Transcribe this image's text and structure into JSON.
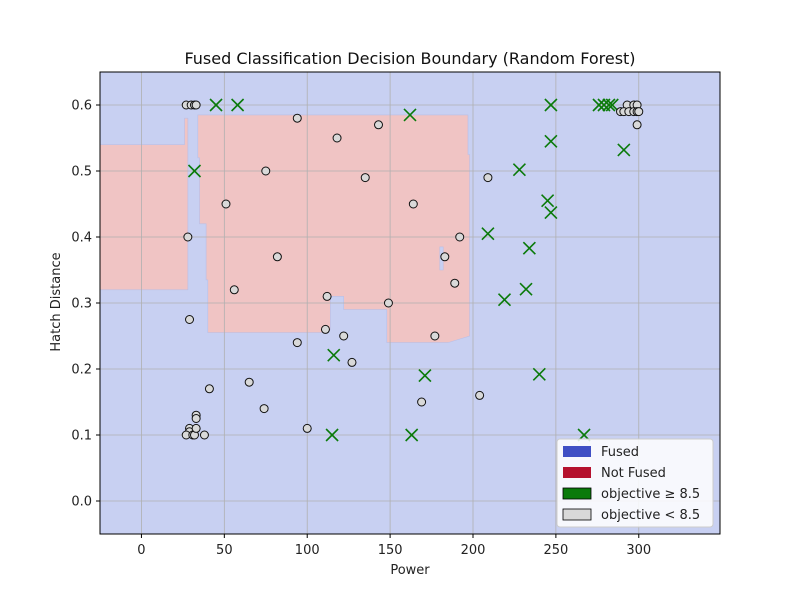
{
  "chart_data": {
    "type": "scatter",
    "title": "Fused Classification Decision Boundary (Random Forest)",
    "xlabel": "Power",
    "ylabel": "Hatch Distance",
    "xlim": [
      -25,
      349
    ],
    "ylim": [
      -0.05,
      0.65
    ],
    "xticks": [
      0,
      50,
      100,
      150,
      200,
      250,
      300
    ],
    "yticks": [
      0.0,
      0.1,
      0.2,
      0.3,
      0.4,
      0.5,
      0.6
    ],
    "grid": true,
    "legend_position": "lower-right",
    "colors": {
      "fused_region": "#c8d0f2",
      "not_fused_region": "#f0c4c4",
      "fused_patch": "#3f4fc4",
      "not_fused_patch": "#b5112e",
      "high_marker": "#0a7a0a",
      "low_marker_fill": "#d9d9d9",
      "low_marker_edge": "#111111"
    },
    "legend": [
      {
        "label": "Fused",
        "kind": "patch",
        "color": "#3f4fc4"
      },
      {
        "label": "Not Fused",
        "kind": "patch",
        "color": "#b5112e"
      },
      {
        "label": "objective ≥ 8.5",
        "kind": "patch",
        "color": "#0a7a0a"
      },
      {
        "label": "objective < 8.5",
        "kind": "patch",
        "color": "#d9d9d9"
      }
    ],
    "regions": [
      {
        "class": "Not Fused",
        "polygon": [
          [
            -25,
            0.54
          ],
          [
            26,
            0.54
          ],
          [
            26,
            0.58
          ],
          [
            28,
            0.58
          ],
          [
            28,
            0.32
          ],
          [
            26,
            0.32
          ],
          [
            26,
            0.32
          ],
          [
            -25,
            0.32
          ]
        ]
      },
      {
        "class": "Not Fused",
        "polygon": [
          [
            34,
            0.585
          ],
          [
            197,
            0.585
          ],
          [
            197,
            0.525
          ],
          [
            198,
            0.525
          ],
          [
            198,
            0.25
          ],
          [
            185,
            0.24
          ],
          [
            155,
            0.24
          ],
          [
            155,
            0.24
          ],
          [
            148,
            0.24
          ],
          [
            148,
            0.29
          ],
          [
            122,
            0.29
          ],
          [
            122,
            0.31
          ],
          [
            114,
            0.31
          ],
          [
            114,
            0.26
          ],
          [
            112,
            0.255
          ],
          [
            40,
            0.255
          ],
          [
            40,
            0.335
          ],
          [
            39,
            0.335
          ],
          [
            39,
            0.42
          ],
          [
            35,
            0.42
          ],
          [
            35,
            0.52
          ],
          [
            34,
            0.52
          ]
        ]
      },
      {
        "class": "Fused",
        "polygon": [
          [
            180,
            0.385
          ],
          [
            182,
            0.385
          ],
          [
            182,
            0.35
          ],
          [
            180,
            0.35
          ]
        ]
      }
    ],
    "series": [
      {
        "name": "objective ≥ 8.5",
        "marker": "x",
        "points": [
          [
            45,
            0.6
          ],
          [
            58,
            0.6
          ],
          [
            32,
            0.5
          ],
          [
            162,
            0.585
          ],
          [
            228,
            0.502
          ],
          [
            247,
            0.6
          ],
          [
            247,
            0.545
          ],
          [
            245,
            0.455
          ],
          [
            247,
            0.437
          ],
          [
            209,
            0.405
          ],
          [
            234,
            0.383
          ],
          [
            219,
            0.305
          ],
          [
            232,
            0.321
          ],
          [
            116,
            0.221
          ],
          [
            171,
            0.19
          ],
          [
            240,
            0.192
          ],
          [
            115,
            0.1
          ],
          [
            163,
            0.1
          ],
          [
            267,
            0.1
          ],
          [
            276,
            0.6
          ],
          [
            279,
            0.6
          ],
          [
            282,
            0.6
          ],
          [
            284,
            0.6
          ],
          [
            291,
            0.532
          ]
        ]
      },
      {
        "name": "objective < 8.5",
        "marker": "o",
        "points": [
          [
            27,
            0.6
          ],
          [
            30,
            0.6
          ],
          [
            32,
            0.6
          ],
          [
            33,
            0.6
          ],
          [
            94,
            0.58
          ],
          [
            118,
            0.55
          ],
          [
            143,
            0.57
          ],
          [
            75,
            0.5
          ],
          [
            135,
            0.49
          ],
          [
            209,
            0.49
          ],
          [
            51,
            0.45
          ],
          [
            164,
            0.45
          ],
          [
            28,
            0.4
          ],
          [
            192,
            0.4
          ],
          [
            82,
            0.37
          ],
          [
            183,
            0.37
          ],
          [
            56,
            0.32
          ],
          [
            112,
            0.31
          ],
          [
            149,
            0.3
          ],
          [
            189,
            0.33
          ],
          [
            29,
            0.275
          ],
          [
            111,
            0.26
          ],
          [
            122,
            0.25
          ],
          [
            177,
            0.25
          ],
          [
            94,
            0.24
          ],
          [
            127,
            0.21
          ],
          [
            65,
            0.18
          ],
          [
            41,
            0.17
          ],
          [
            74,
            0.14
          ],
          [
            169,
            0.15
          ],
          [
            204,
            0.16
          ],
          [
            100,
            0.11
          ],
          [
            33,
            0.13
          ],
          [
            33,
            0.125
          ],
          [
            29,
            0.11
          ],
          [
            29,
            0.105
          ],
          [
            27,
            0.1
          ],
          [
            31,
            0.1
          ],
          [
            32,
            0.1
          ],
          [
            33,
            0.11
          ],
          [
            38,
            0.1
          ],
          [
            293,
            0.6
          ],
          [
            297,
            0.6
          ],
          [
            299,
            0.6
          ],
          [
            289,
            0.59
          ],
          [
            291,
            0.59
          ],
          [
            294,
            0.59
          ],
          [
            297,
            0.59
          ],
          [
            299,
            0.59
          ],
          [
            300,
            0.59
          ],
          [
            299,
            0.57
          ]
        ]
      }
    ]
  }
}
